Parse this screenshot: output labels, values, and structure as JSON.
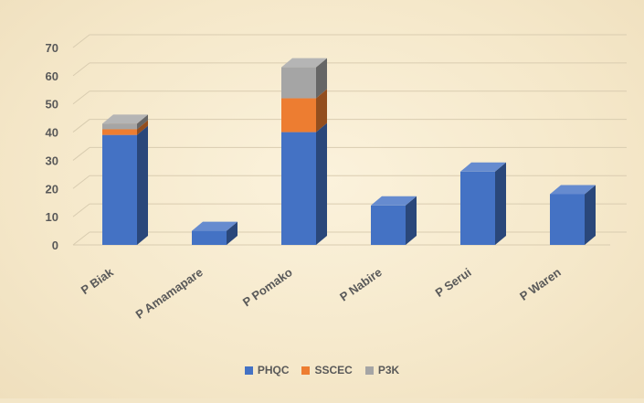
{
  "chart_data": {
    "type": "bar",
    "stacked": true,
    "three_d": true,
    "title": "",
    "xlabel": "",
    "ylabel": "",
    "ylim": [
      0,
      70
    ],
    "yticks": [
      0,
      10,
      20,
      30,
      40,
      50,
      60,
      70
    ],
    "grid": true,
    "legend_position": "bottom",
    "categories": [
      "P Biak",
      "P Amamapare",
      "P Pomako",
      "P Nabire",
      "P Serui",
      "P Waren"
    ],
    "series": [
      {
        "name": "PHQC",
        "color": "#4472c4",
        "values": [
          39,
          5,
          40,
          14,
          26,
          18
        ]
      },
      {
        "name": "SSCEC",
        "color": "#ed7d31",
        "values": [
          2,
          0,
          12,
          0,
          0,
          0
        ]
      },
      {
        "name": "P3K",
        "color": "#a5a5a5",
        "values": [
          2,
          0,
          11,
          0,
          0,
          0
        ]
      }
    ]
  }
}
